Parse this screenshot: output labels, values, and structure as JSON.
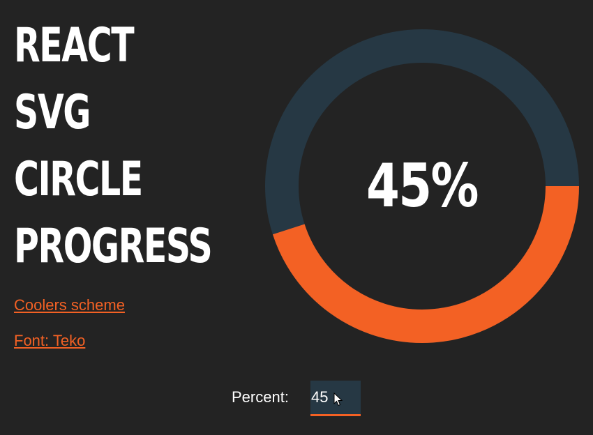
{
  "title": {
    "lines": [
      "REACT",
      "SVG",
      "CIRCLE",
      "PROGRESS"
    ]
  },
  "links": [
    {
      "label": "Coolers scheme"
    },
    {
      "label": "Font: Teko"
    }
  ],
  "progress": {
    "percent": 45,
    "display": "45%",
    "colors": {
      "track": "#263844",
      "fill": "#f36124",
      "background": "#232323",
      "text": "#ffffff"
    }
  },
  "control": {
    "label": "Percent:",
    "value": "45"
  },
  "icons": {
    "cursor": "mouse-pointer-icon"
  }
}
